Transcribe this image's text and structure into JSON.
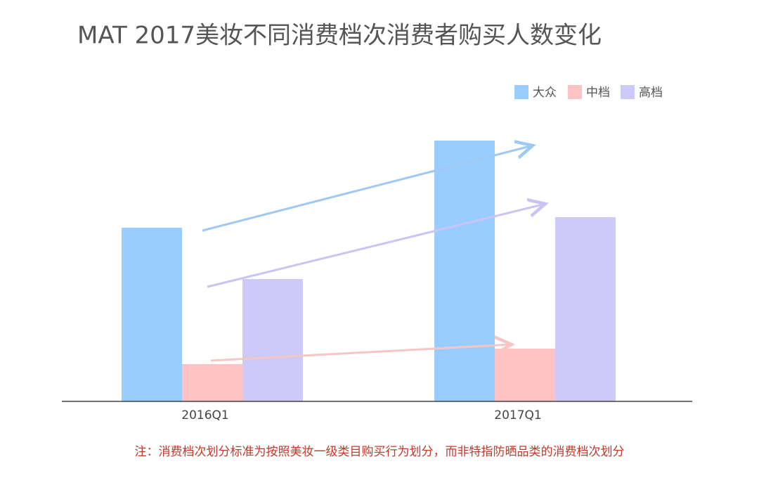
{
  "chart_data": {
    "type": "bar",
    "title": "MAT 2017美妆不同消费档次消费者购买人数变化",
    "categories": [
      "2016Q1",
      "2017Q1"
    ],
    "series": [
      {
        "name": "大众",
        "color": "#99ccff",
        "values": [
          247,
          371
        ]
      },
      {
        "name": "中档",
        "color": "#ffc2c2",
        "values": [
          53,
          75
        ]
      },
      {
        "name": "高档",
        "color": "#cdc9f8",
        "values": [
          174,
          262
        ]
      }
    ],
    "ylim": [
      0,
      400
    ],
    "note": "注：消费档次划分标准为按照美妆一级类目购买行为划分，而非特指防晒品类的消费档次划分"
  }
}
